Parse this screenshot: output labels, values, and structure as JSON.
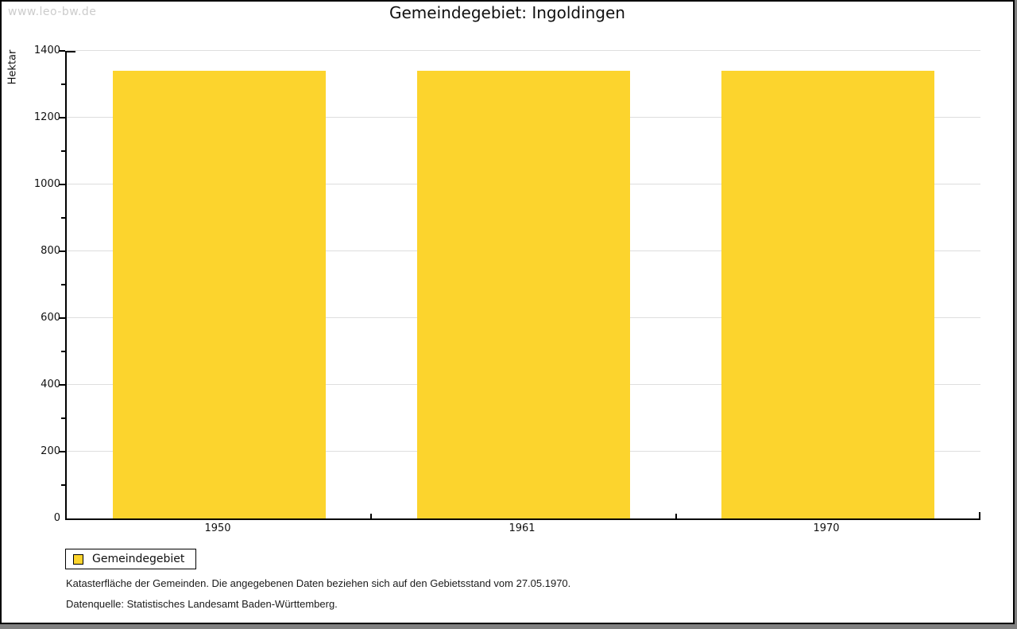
{
  "watermark": "www.leo-bw.de",
  "title": "Gemeindegebiet: Ingoldingen",
  "chart_data": {
    "type": "bar",
    "title": "Gemeindegebiet: Ingoldingen",
    "categories": [
      "1950",
      "1961",
      "1970"
    ],
    "series": [
      {
        "name": "Gemeindegebiet",
        "values": [
          1340,
          1340,
          1340
        ]
      }
    ],
    "xlabel": "",
    "ylabel": "Hektar",
    "ylim": [
      0,
      1400
    ],
    "ytick_step": 200,
    "ytick_minor_step": 100,
    "grid": true,
    "legend_position": "bottom-left-below-plot",
    "bar_color": "#fcd42d"
  },
  "legend": {
    "label": "Gemeindegebiet"
  },
  "footnotes": [
    "Katasterfläche der Gemeinden. Die angegebenen Daten beziehen sich auf den Gebietsstand vom 27.05.1970.",
    "Datenquelle: Statistisches Landesamt Baden-Württemberg."
  ],
  "colors": {
    "bar": "#fcd42d",
    "grid": "#dedede",
    "axis": "#000000",
    "watermark": "#cccccc",
    "frame_shadow": "#808080",
    "background": "#ffffff"
  }
}
